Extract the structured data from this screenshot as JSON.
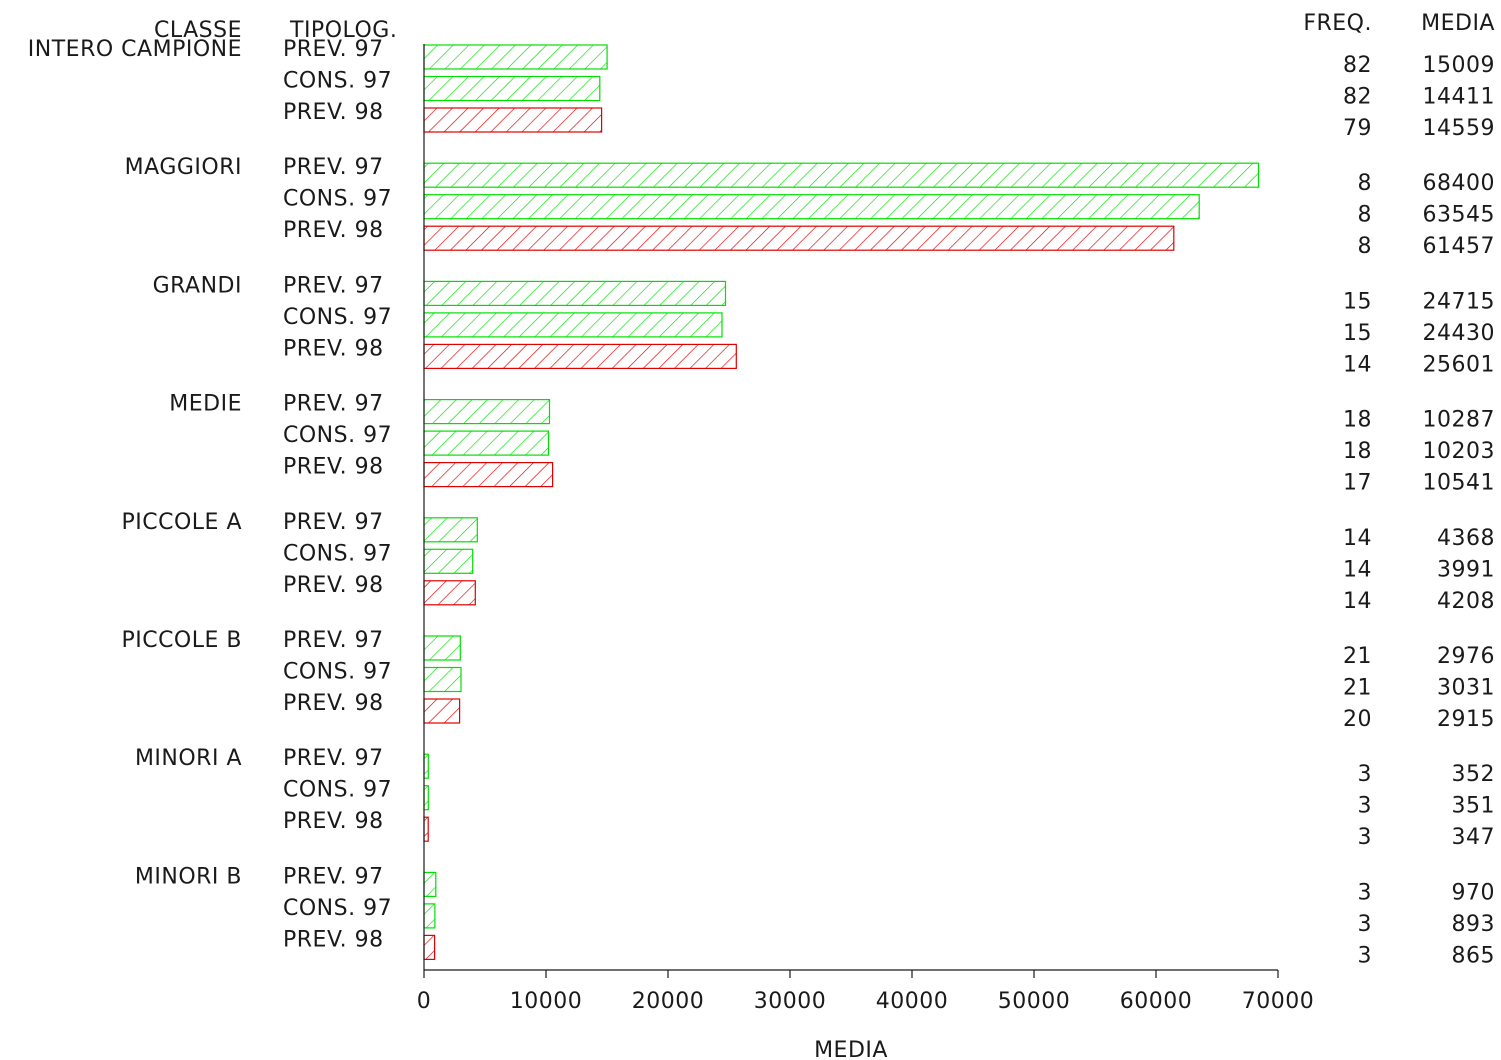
{
  "chart_data": {
    "type": "bar",
    "orientation": "horizontal",
    "headers": {
      "classe": "CLASSE",
      "tipologia": "TIPOLOG.",
      "freq": "FREQ.",
      "media": "MEDIA"
    },
    "xlabel": "MEDIA",
    "xlim": [
      0,
      70000
    ],
    "xticks": [
      0,
      10000,
      20000,
      30000,
      40000,
      50000,
      60000,
      70000
    ],
    "hatch": "diagonal",
    "colors": {
      "PREV. 97": "#00e000",
      "CONS. 97": "#00e000",
      "PREV. 98": "#e00000"
    },
    "groups": [
      {
        "classe": "INTERO CAMPIONE",
        "bars": [
          {
            "tipologia": "PREV. 97",
            "freq": 82,
            "media": 15009
          },
          {
            "tipologia": "CONS. 97",
            "freq": 82,
            "media": 14411
          },
          {
            "tipologia": "PREV. 98",
            "freq": 79,
            "media": 14559
          }
        ]
      },
      {
        "classe": "MAGGIORI",
        "bars": [
          {
            "tipologia": "PREV. 97",
            "freq": 8,
            "media": 68400
          },
          {
            "tipologia": "CONS. 97",
            "freq": 8,
            "media": 63545
          },
          {
            "tipologia": "PREV. 98",
            "freq": 8,
            "media": 61457
          }
        ]
      },
      {
        "classe": "GRANDI",
        "bars": [
          {
            "tipologia": "PREV. 97",
            "freq": 15,
            "media": 24715
          },
          {
            "tipologia": "CONS. 97",
            "freq": 15,
            "media": 24430
          },
          {
            "tipologia": "PREV. 98",
            "freq": 14,
            "media": 25601
          }
        ]
      },
      {
        "classe": "MEDIE",
        "bars": [
          {
            "tipologia": "PREV. 97",
            "freq": 18,
            "media": 10287
          },
          {
            "tipologia": "CONS. 97",
            "freq": 18,
            "media": 10203
          },
          {
            "tipologia": "PREV. 98",
            "freq": 17,
            "media": 10541
          }
        ]
      },
      {
        "classe": "PICCOLE A",
        "bars": [
          {
            "tipologia": "PREV. 97",
            "freq": 14,
            "media": 4368
          },
          {
            "tipologia": "CONS. 97",
            "freq": 14,
            "media": 3991
          },
          {
            "tipologia": "PREV. 98",
            "freq": 14,
            "media": 4208
          }
        ]
      },
      {
        "classe": "PICCOLE B",
        "bars": [
          {
            "tipologia": "PREV. 97",
            "freq": 21,
            "media": 2976
          },
          {
            "tipologia": "CONS. 97",
            "freq": 21,
            "media": 3031
          },
          {
            "tipologia": "PREV. 98",
            "freq": 20,
            "media": 2915
          }
        ]
      },
      {
        "classe": "MINORI A",
        "bars": [
          {
            "tipologia": "PREV. 97",
            "freq": 3,
            "media": 352
          },
          {
            "tipologia": "CONS. 97",
            "freq": 3,
            "media": 351
          },
          {
            "tipologia": "PREV. 98",
            "freq": 3,
            "media": 347
          }
        ]
      },
      {
        "classe": "MINORI B",
        "bars": [
          {
            "tipologia": "PREV. 97",
            "freq": 3,
            "media": 970
          },
          {
            "tipologia": "CONS. 97",
            "freq": 3,
            "media": 893
          },
          {
            "tipologia": "PREV. 98",
            "freq": 3,
            "media": 865
          }
        ]
      }
    ]
  }
}
